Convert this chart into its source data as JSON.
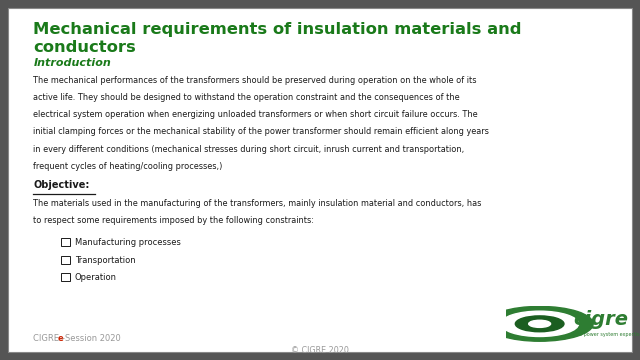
{
  "title_line1": "Mechanical requirements of insulation materials and",
  "title_line2": "conductors",
  "title_color": "#1a7a1a",
  "section_label": "Introduction",
  "section_color": "#1a7a1a",
  "body_text_lines": [
    "The mechanical performances of the transformers should be preserved during operation on the whole of its",
    "active life. They should be designed to withstand the operation constraint and the consequences of the",
    "electrical system operation when energizing unloaded transformers or when short circuit failure occurs. The",
    "initial clamping forces or the mechanical stability of the power transformer should remain efficient along years",
    "in every different conditions (mechanical stresses during short circuit, inrush current and transportation,",
    "frequent cycles of heating/cooling processes,)"
  ],
  "objective_label": "Objective:",
  "objective_text_lines": [
    "The materials used in the manufacturing of the transformers, mainly insulation material and conductors, has",
    "to respect some requirements imposed by the following constraints:"
  ],
  "bullet_items": [
    "Manufacturing processes",
    "Transportation",
    "Operation"
  ],
  "footer_center": "© CIGRE 2020",
  "footer_color": "#999999",
  "footer_highlight_color": "#cc2200",
  "bg_color": "#ffffff",
  "text_color": "#1a1a1a",
  "border_color": "#888888",
  "slide_bg": "#555555",
  "logo_green": "#2e7d32",
  "logo_text": "cigre",
  "logo_subtext": "the power system expertise"
}
